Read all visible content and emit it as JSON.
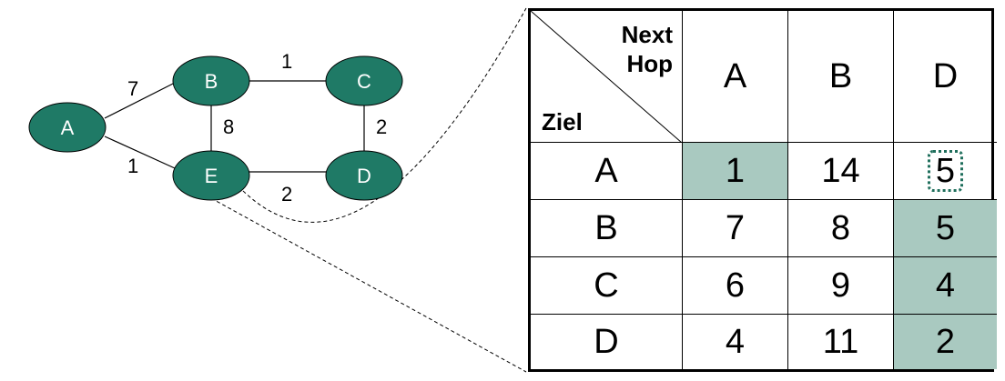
{
  "graph": {
    "nodes": [
      {
        "id": "A",
        "label": "A"
      },
      {
        "id": "B",
        "label": "B"
      },
      {
        "id": "C",
        "label": "C"
      },
      {
        "id": "D",
        "label": "D"
      },
      {
        "id": "E",
        "label": "E"
      }
    ],
    "edges": [
      {
        "from": "A",
        "to": "B",
        "weight": "7"
      },
      {
        "from": "A",
        "to": "E",
        "weight": "1"
      },
      {
        "from": "B",
        "to": "C",
        "weight": "1"
      },
      {
        "from": "B",
        "to": "E",
        "weight": "8"
      },
      {
        "from": "C",
        "to": "D",
        "weight": "2"
      },
      {
        "from": "E",
        "to": "D",
        "weight": "2"
      }
    ],
    "node_color": "#1f7a66"
  },
  "table": {
    "corner": {
      "column_header": "Next Hop",
      "row_header": "Ziel"
    },
    "columns": [
      "A",
      "B",
      "D"
    ],
    "rows": [
      {
        "dest": "A",
        "values": [
          "1",
          "14",
          "5"
        ]
      },
      {
        "dest": "B",
        "values": [
          "7",
          "8",
          "5"
        ]
      },
      {
        "dest": "C",
        "values": [
          "6",
          "9",
          "4"
        ]
      },
      {
        "dest": "D",
        "values": [
          "4",
          "11",
          "2"
        ]
      }
    ],
    "highlight_color": "#a9c9c0",
    "dotted_marker_color": "#1f6f5c"
  }
}
